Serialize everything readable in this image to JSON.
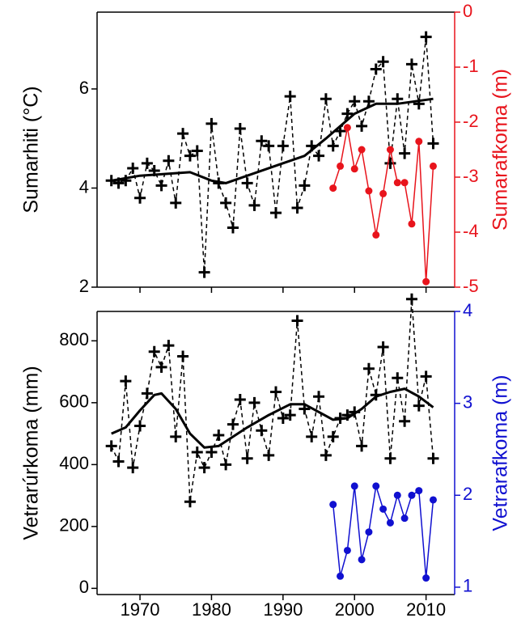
{
  "chart_data": [
    {
      "type": "line",
      "ylabel": "Sumarhiti (°C)",
      "y2label": "Sumarafkoma (m)",
      "y2color": "#e8141c",
      "xlim": [
        1964,
        2014
      ],
      "xticks": [
        1970,
        1980,
        1990,
        2000,
        2010
      ],
      "show_xticklabels": false,
      "ylim": [
        2,
        7.55
      ],
      "yticks": [
        2,
        4,
        6
      ],
      "y2lim": [
        -5,
        0
      ],
      "y2ticks": [
        -5,
        -4,
        -3,
        -2,
        -1,
        0
      ],
      "series": [
        {
          "color": "#000000",
          "linestyle": "dashed",
          "marker": "+",
          "x": [
            1966,
            1967,
            1968,
            1969,
            1970,
            1971,
            1972,
            1973,
            1974,
            1975,
            1976,
            1977,
            1978,
            1979,
            1980,
            1981,
            1982,
            1983,
            1984,
            1985,
            1986,
            1987,
            1988,
            1989,
            1990,
            1991,
            1992,
            1993,
            1994,
            1995,
            1996,
            1997,
            1998,
            1999,
            2000,
            2001,
            2002,
            2003,
            2004,
            2005,
            2006,
            2007,
            2008,
            2009,
            2010,
            2011
          ],
          "values": [
            4.15,
            4.1,
            4.15,
            4.4,
            3.8,
            4.5,
            4.35,
            4.05,
            4.55,
            3.7,
            5.1,
            4.65,
            4.75,
            2.3,
            5.3,
            4.1,
            3.7,
            3.2,
            5.2,
            4.1,
            3.65,
            4.95,
            4.85,
            3.5,
            4.85,
            5.85,
            3.6,
            4.05,
            4.85,
            4.65,
            5.8,
            4.85,
            5.15,
            5.5,
            5.75,
            5.25,
            5.75,
            6.4,
            6.55,
            4.5,
            5.8,
            4.7,
            6.5,
            5.7,
            7.05,
            4.9
          ]
        },
        {
          "color": "#000000",
          "linestyle": "solid",
          "linewidth": 3,
          "x": [
            1966,
            1970,
            1975,
            1977,
            1980,
            1982,
            1985,
            1990,
            1993,
            1996,
            2000,
            2003,
            2006,
            2011
          ],
          "values": [
            4.15,
            4.25,
            4.3,
            4.32,
            4.15,
            4.1,
            4.25,
            4.5,
            4.65,
            5.0,
            5.5,
            5.7,
            5.7,
            5.8
          ]
        },
        {
          "color": "#e8141c",
          "linestyle": "solid",
          "marker": "o",
          "axis": "y2",
          "x": [
            1997,
            1998,
            1999,
            2000,
            2001,
            2002,
            2003,
            2004,
            2005,
            2006,
            2007,
            2008,
            2009,
            2010,
            2011
          ],
          "values": [
            -3.2,
            -2.8,
            -2.1,
            -2.85,
            -2.5,
            -3.25,
            -4.05,
            -3.3,
            -2.5,
            -3.1,
            -3.1,
            -3.85,
            -2.35,
            -4.9,
            -2.8
          ]
        }
      ]
    },
    {
      "type": "line",
      "ylabel": "Vetrarúrkoma (mm)",
      "y2label": "Vetrarafkoma (m)",
      "y2color": "#1010d0",
      "xlim": [
        1964,
        2014
      ],
      "xticks": [
        1970,
        1980,
        1990,
        2000,
        2010
      ],
      "show_xticklabels": true,
      "ylim": [
        -20,
        895
      ],
      "yticks": [
        0,
        200,
        400,
        600,
        800
      ],
      "y2lim": [
        0.92,
        4
      ],
      "y2ticks": [
        1,
        2,
        3,
        4
      ],
      "series": [
        {
          "color": "#000000",
          "linestyle": "dashed",
          "marker": "+",
          "x": [
            1966,
            1967,
            1968,
            1969,
            1970,
            1971,
            1972,
            1973,
            1974,
            1975,
            1976,
            1977,
            1978,
            1979,
            1980,
            1981,
            1982,
            1983,
            1984,
            1985,
            1986,
            1987,
            1988,
            1989,
            1990,
            1991,
            1992,
            1993,
            1994,
            1995,
            1996,
            1997,
            1998,
            1999,
            2000,
            2001,
            2002,
            2003,
            2004,
            2005,
            2006,
            2007,
            2008,
            2009,
            2010,
            2011
          ],
          "values": [
            460,
            410,
            670,
            390,
            525,
            630,
            765,
            715,
            785,
            490,
            750,
            280,
            440,
            390,
            440,
            495,
            400,
            530,
            610,
            420,
            600,
            510,
            430,
            635,
            550,
            560,
            865,
            580,
            490,
            620,
            430,
            490,
            550,
            560,
            570,
            460,
            710,
            625,
            780,
            420,
            680,
            540,
            935,
            590,
            685,
            420
          ]
        },
        {
          "color": "#000000",
          "linestyle": "solid",
          "linewidth": 3,
          "x": [
            1966,
            1968,
            1970,
            1972,
            1973,
            1975,
            1977,
            1979,
            1981,
            1983,
            1985,
            1988,
            1991,
            1993,
            1995,
            1997,
            1999,
            2001,
            2003,
            2005,
            2007,
            2009,
            2011
          ],
          "values": [
            500,
            520,
            575,
            625,
            630,
            580,
            500,
            455,
            460,
            490,
            520,
            560,
            595,
            595,
            570,
            545,
            550,
            580,
            620,
            635,
            645,
            620,
            585
          ]
        },
        {
          "color": "#1010d0",
          "linestyle": "solid",
          "marker": "o",
          "axis": "y2",
          "x": [
            1997,
            1998,
            1999,
            2000,
            2001,
            2002,
            2003,
            2004,
            2005,
            2006,
            2007,
            2008,
            2009,
            2010,
            2011
          ],
          "values": [
            1.9,
            1.12,
            1.4,
            2.1,
            1.3,
            1.6,
            2.1,
            1.85,
            1.7,
            2.0,
            1.75,
            2.0,
            2.05,
            1.1,
            1.95
          ]
        }
      ]
    }
  ]
}
